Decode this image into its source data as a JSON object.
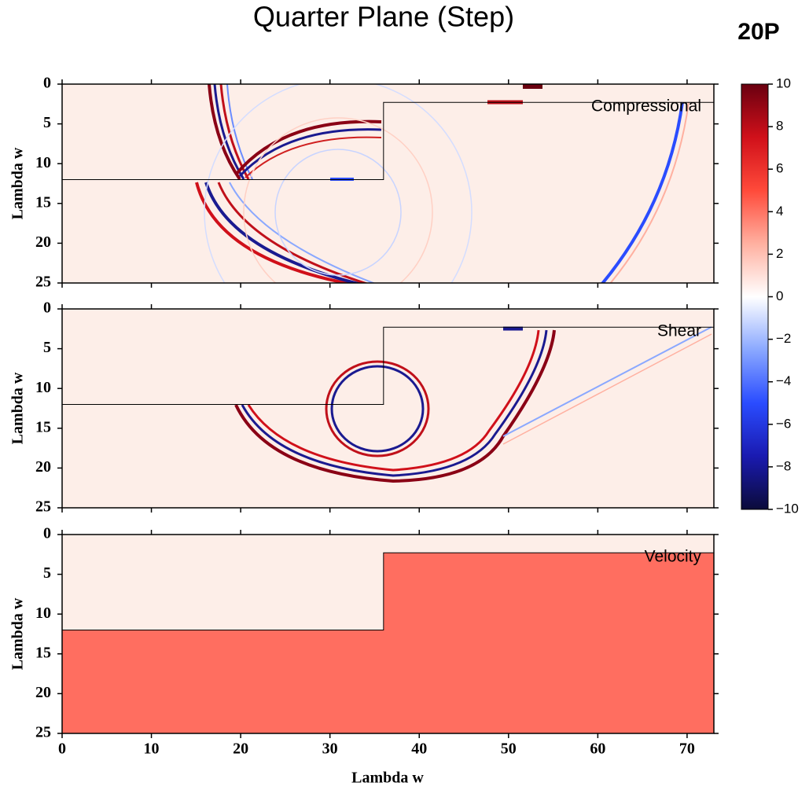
{
  "chart_data": {
    "type": "heatmap",
    "title": "Quarter Plane (Step)",
    "corner_label": "20P",
    "xlabel": "Lambda w",
    "xlim": [
      0,
      73
    ],
    "xticks": [
      0,
      10,
      20,
      30,
      40,
      50,
      60,
      70
    ],
    "ylim": [
      25,
      0
    ],
    "yticks": [
      0,
      5,
      10,
      15,
      20,
      25
    ],
    "interface": {
      "x": [
        0,
        36,
        36,
        73
      ],
      "y": [
        12,
        12,
        2.3,
        2.3
      ]
    },
    "background_color": "#fdeee8",
    "fill_color": "#ff6e60",
    "panels": [
      {
        "label": "Compressional",
        "ylabel": "Lambda w"
      },
      {
        "label": "Shear",
        "ylabel": "Lambda w"
      },
      {
        "label": "Velocity",
        "ylabel": "Lambda w",
        "filled": true
      }
    ],
    "colorbar": {
      "lim": [
        -10,
        10
      ],
      "ticks": [
        10,
        8,
        6,
        4,
        2,
        0,
        {
          "value": -2,
          "label": "−2"
        },
        {
          "value": -4,
          "label": "−4"
        },
        {
          "value": -6,
          "label": "−6"
        },
        {
          "value": -8,
          "label": "−8"
        },
        {
          "value": -10,
          "label": "−10"
        }
      ],
      "colors": [
        "#0b0b3a",
        "#1a1ab0",
        "#2a4cff",
        "#8aa8ff",
        "#ffffff",
        "#ffb0a0",
        "#ff4a3a",
        "#d0101a",
        "#6a0010"
      ]
    }
  }
}
